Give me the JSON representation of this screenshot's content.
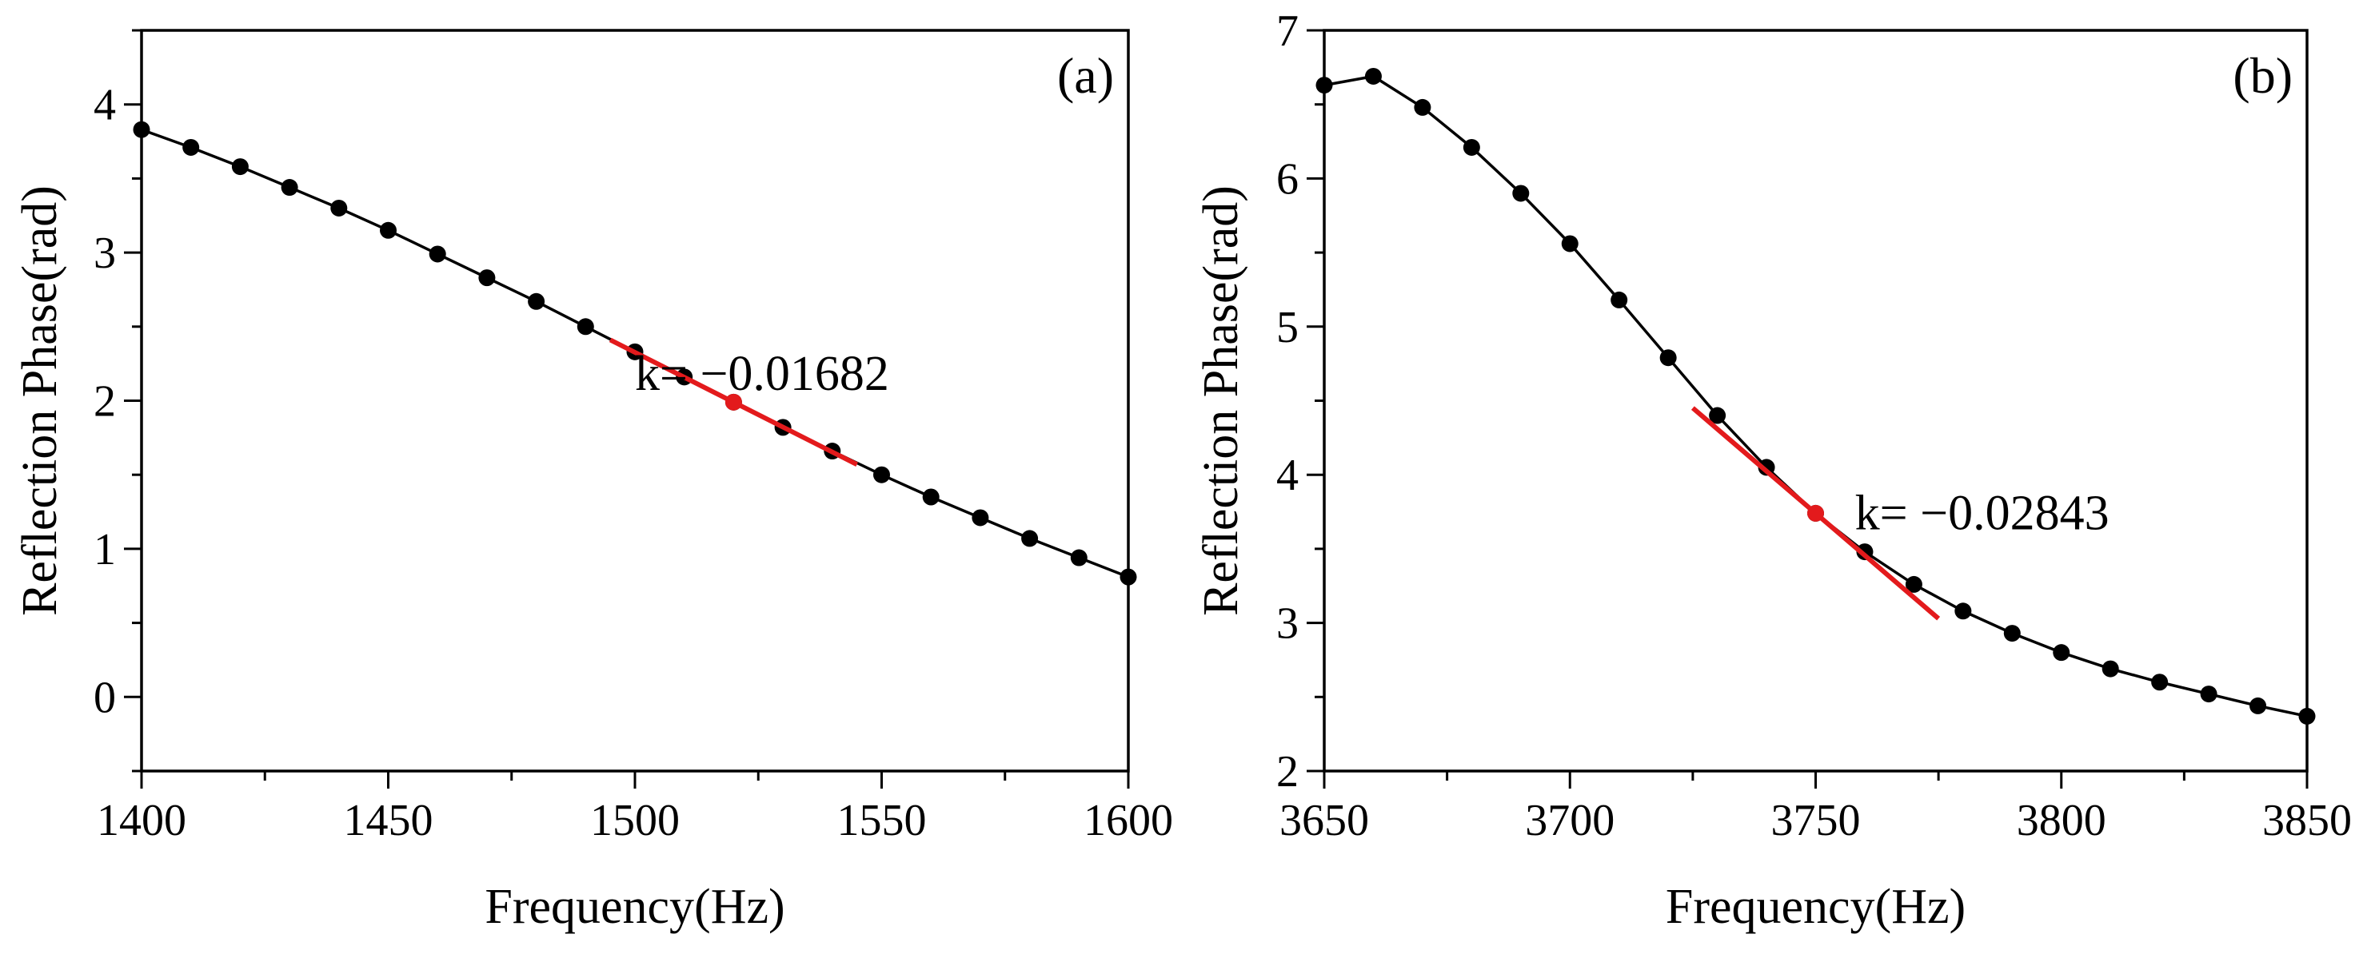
{
  "chart_data": [
    {
      "type": "line",
      "panel_label": "(a)",
      "xlabel": "Frequency(Hz)",
      "ylabel": "Reflection Phase(rad)",
      "xlim": [
        1400,
        1600
      ],
      "ylim": [
        -0.5,
        4.5
      ],
      "xticks": [
        "1400",
        "1450",
        "1500",
        "1550",
        "1600"
      ],
      "yticks": [
        "0",
        "1",
        "2",
        "3",
        "4"
      ],
      "grid": false,
      "series": [
        {
          "x": [
            1400,
            1410,
            1420,
            1430,
            1440,
            1450,
            1460,
            1470,
            1480,
            1490,
            1500,
            1510,
            1520,
            1530,
            1540,
            1550,
            1560,
            1570,
            1580,
            1590,
            1600
          ],
          "y": [
            3.83,
            3.71,
            3.58,
            3.44,
            3.3,
            3.15,
            2.99,
            2.83,
            2.67,
            2.5,
            2.33,
            2.16,
            1.99,
            1.82,
            1.66,
            1.5,
            1.35,
            1.21,
            1.07,
            0.94,
            0.81
          ],
          "color": "#000000"
        }
      ],
      "tangent": {
        "point": [
          1520,
          1.99
        ],
        "slope": -0.01682,
        "x_range": [
          1495,
          1545
        ],
        "color": "#e31a1c"
      },
      "annotation": {
        "text": "k= −0.01682",
        "x": 1500,
        "y": 2.18
      }
    },
    {
      "type": "line",
      "panel_label": "(b)",
      "xlabel": "Frequency(Hz)",
      "ylabel": "Reflection Phase(rad)",
      "xlim": [
        3650,
        3850
      ],
      "ylim": [
        2,
        7
      ],
      "xticks": [
        "3650",
        "3700",
        "3750",
        "3800",
        "3850"
      ],
      "yticks": [
        "2",
        "3",
        "4",
        "5",
        "6",
        "7"
      ],
      "grid": false,
      "series": [
        {
          "x": [
            3650,
            3660,
            3670,
            3680,
            3690,
            3700,
            3710,
            3720,
            3730,
            3740,
            3750,
            3760,
            3770,
            3780,
            3790,
            3800,
            3810,
            3820,
            3830,
            3840,
            3850
          ],
          "y": [
            6.63,
            6.69,
            6.48,
            6.21,
            5.9,
            5.56,
            5.18,
            4.79,
            4.4,
            4.05,
            3.74,
            3.48,
            3.26,
            3.08,
            2.93,
            2.8,
            2.69,
            2.6,
            2.52,
            2.44,
            2.37
          ],
          "color": "#000000"
        }
      ],
      "tangent": {
        "point": [
          3750,
          3.74
        ],
        "slope": -0.02843,
        "x_range": [
          3725,
          3775
        ],
        "color": "#e31a1c"
      },
      "annotation": {
        "text": "k= −0.02843",
        "x": 3758,
        "y": 3.74
      }
    }
  ]
}
